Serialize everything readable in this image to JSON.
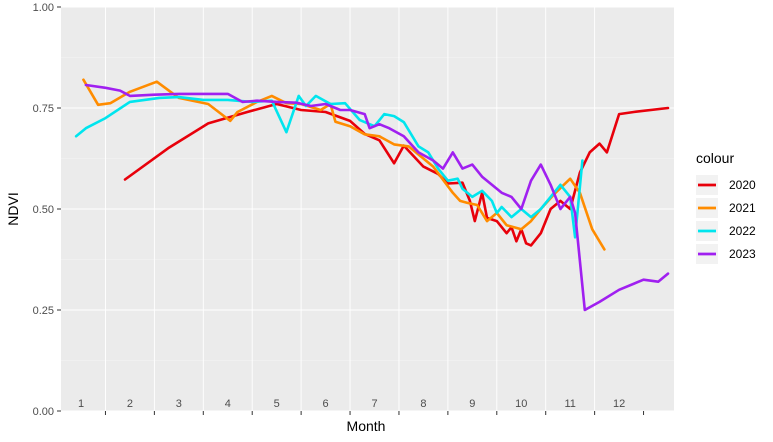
{
  "chart_data": {
    "type": "line",
    "title": "",
    "xlabel": "Month",
    "ylabel": "NDVI",
    "ylim": [
      0,
      1
    ],
    "xlim": [
      0,
      12
    ],
    "y_ticks": [
      "0.00",
      "0.25",
      "0.50",
      "0.75",
      "1.00"
    ],
    "month_labels": [
      "1",
      "2",
      "3",
      "4",
      "5",
      "6",
      "7",
      "8",
      "9",
      "10",
      "11",
      "12"
    ],
    "grid": true,
    "legend": {
      "title": "colour",
      "position": "right",
      "items": [
        "2020",
        "2021",
        "2022",
        "2023"
      ]
    },
    "series": [
      {
        "name": "2020",
        "color": "#e8000b",
        "points": [
          [
            0.9,
            0.573
          ],
          [
            1.8,
            0.652
          ],
          [
            2.6,
            0.712
          ],
          [
            3.4,
            0.74
          ],
          [
            4.0,
            0.76
          ],
          [
            4.5,
            0.745
          ],
          [
            5.0,
            0.74
          ],
          [
            5.5,
            0.718
          ],
          [
            5.8,
            0.686
          ],
          [
            6.1,
            0.67
          ],
          [
            6.4,
            0.613
          ],
          [
            6.6,
            0.657
          ],
          [
            7.0,
            0.605
          ],
          [
            7.3,
            0.587
          ],
          [
            7.5,
            0.563
          ],
          [
            7.8,
            0.565
          ],
          [
            7.95,
            0.52
          ],
          [
            8.05,
            0.47
          ],
          [
            8.2,
            0.54
          ],
          [
            8.3,
            0.478
          ],
          [
            8.5,
            0.47
          ],
          [
            8.7,
            0.44
          ],
          [
            8.8,
            0.455
          ],
          [
            8.9,
            0.42
          ],
          [
            9.0,
            0.45
          ],
          [
            9.1,
            0.415
          ],
          [
            9.2,
            0.41
          ],
          [
            9.4,
            0.44
          ],
          [
            9.6,
            0.5
          ],
          [
            9.8,
            0.52
          ],
          [
            10.0,
            0.5
          ],
          [
            10.2,
            0.59
          ],
          [
            10.4,
            0.64
          ],
          [
            10.6,
            0.662
          ],
          [
            10.75,
            0.64
          ],
          [
            11.0,
            0.735
          ],
          [
            11.3,
            0.74
          ],
          [
            12.0,
            0.75
          ]
        ]
      },
      {
        "name": "2021",
        "color": "#ff8c00",
        "points": [
          [
            0.05,
            0.82
          ],
          [
            0.35,
            0.758
          ],
          [
            0.6,
            0.762
          ],
          [
            1.0,
            0.79
          ],
          [
            1.55,
            0.815
          ],
          [
            2.0,
            0.775
          ],
          [
            2.6,
            0.76
          ],
          [
            3.05,
            0.718
          ],
          [
            3.2,
            0.74
          ],
          [
            3.6,
            0.765
          ],
          [
            3.9,
            0.78
          ],
          [
            4.2,
            0.762
          ],
          [
            4.5,
            0.76
          ],
          [
            4.9,
            0.745
          ],
          [
            5.1,
            0.76
          ],
          [
            5.2,
            0.716
          ],
          [
            5.5,
            0.705
          ],
          [
            5.8,
            0.685
          ],
          [
            6.1,
            0.68
          ],
          [
            6.4,
            0.66
          ],
          [
            6.7,
            0.655
          ],
          [
            6.9,
            0.635
          ],
          [
            7.2,
            0.605
          ],
          [
            7.6,
            0.54
          ],
          [
            7.75,
            0.52
          ],
          [
            7.9,
            0.515
          ],
          [
            8.1,
            0.51
          ],
          [
            8.3,
            0.47
          ],
          [
            8.5,
            0.49
          ],
          [
            8.7,
            0.46
          ],
          [
            9.0,
            0.45
          ],
          [
            9.2,
            0.47
          ],
          [
            9.4,
            0.5
          ],
          [
            9.7,
            0.54
          ],
          [
            10.0,
            0.575
          ],
          [
            10.2,
            0.54
          ],
          [
            10.45,
            0.45
          ],
          [
            10.7,
            0.4
          ]
        ]
      },
      {
        "name": "2022",
        "color": "#00e5ee",
        "points": [
          [
            -0.1,
            0.68
          ],
          [
            0.1,
            0.7
          ],
          [
            0.5,
            0.725
          ],
          [
            1.0,
            0.765
          ],
          [
            1.6,
            0.775
          ],
          [
            2.0,
            0.777
          ],
          [
            2.5,
            0.77
          ],
          [
            3.0,
            0.77
          ],
          [
            3.5,
            0.765
          ],
          [
            3.9,
            0.768
          ],
          [
            4.2,
            0.69
          ],
          [
            4.45,
            0.78
          ],
          [
            4.6,
            0.755
          ],
          [
            4.8,
            0.78
          ],
          [
            5.1,
            0.76
          ],
          [
            5.4,
            0.762
          ],
          [
            5.7,
            0.72
          ],
          [
            6.0,
            0.705
          ],
          [
            6.2,
            0.735
          ],
          [
            6.4,
            0.73
          ],
          [
            6.6,
            0.715
          ],
          [
            6.9,
            0.655
          ],
          [
            7.1,
            0.64
          ],
          [
            7.3,
            0.6
          ],
          [
            7.5,
            0.57
          ],
          [
            7.7,
            0.575
          ],
          [
            7.8,
            0.55
          ],
          [
            8.0,
            0.53
          ],
          [
            8.2,
            0.545
          ],
          [
            8.4,
            0.52
          ],
          [
            8.5,
            0.49
          ],
          [
            8.6,
            0.505
          ],
          [
            8.8,
            0.48
          ],
          [
            9.0,
            0.5
          ],
          [
            9.2,
            0.48
          ],
          [
            9.4,
            0.5
          ],
          [
            9.6,
            0.53
          ],
          [
            9.8,
            0.56
          ],
          [
            10.0,
            0.53
          ],
          [
            10.1,
            0.43
          ],
          [
            10.25,
            0.62
          ]
        ]
      },
      {
        "name": "2023",
        "color": "#a020f0",
        "points": [
          [
            0.1,
            0.807
          ],
          [
            0.5,
            0.8
          ],
          [
            0.8,
            0.793
          ],
          [
            1.0,
            0.78
          ],
          [
            1.5,
            0.783
          ],
          [
            2.0,
            0.785
          ],
          [
            2.5,
            0.785
          ],
          [
            3.0,
            0.785
          ],
          [
            3.3,
            0.765
          ],
          [
            3.6,
            0.768
          ],
          [
            4.0,
            0.765
          ],
          [
            4.4,
            0.763
          ],
          [
            4.7,
            0.755
          ],
          [
            5.0,
            0.76
          ],
          [
            5.3,
            0.745
          ],
          [
            5.5,
            0.745
          ],
          [
            5.8,
            0.735
          ],
          [
            5.9,
            0.7
          ],
          [
            6.1,
            0.71
          ],
          [
            6.3,
            0.7
          ],
          [
            6.6,
            0.68
          ],
          [
            6.9,
            0.64
          ],
          [
            7.2,
            0.62
          ],
          [
            7.4,
            0.6
          ],
          [
            7.6,
            0.64
          ],
          [
            7.8,
            0.6
          ],
          [
            8.0,
            0.61
          ],
          [
            8.2,
            0.58
          ],
          [
            8.4,
            0.56
          ],
          [
            8.6,
            0.54
          ],
          [
            8.8,
            0.53
          ],
          [
            9.0,
            0.5
          ],
          [
            9.2,
            0.57
          ],
          [
            9.4,
            0.61
          ],
          [
            9.6,
            0.56
          ],
          [
            9.8,
            0.5
          ],
          [
            10.0,
            0.53
          ],
          [
            10.1,
            0.49
          ],
          [
            10.3,
            0.25
          ],
          [
            10.6,
            0.27
          ],
          [
            11.0,
            0.3
          ],
          [
            11.5,
            0.325
          ],
          [
            11.8,
            0.32
          ],
          [
            12.0,
            0.34
          ]
        ]
      }
    ]
  }
}
